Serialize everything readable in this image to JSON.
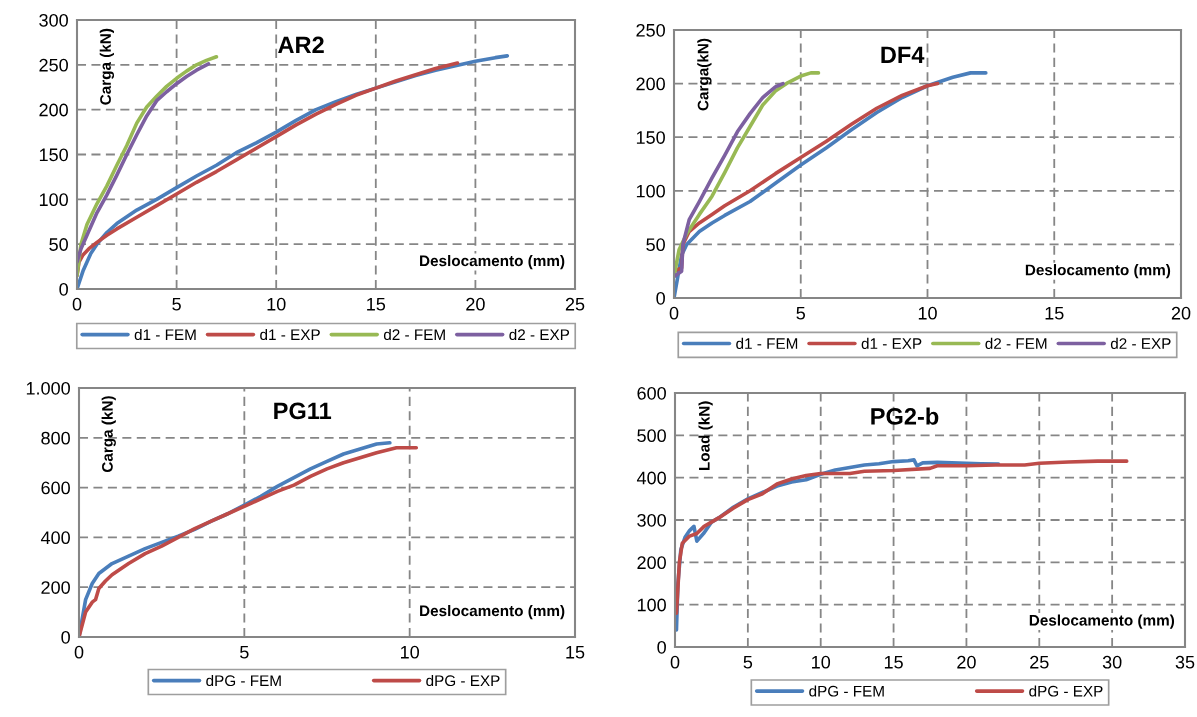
{
  "chart_data": [
    {
      "type": "line",
      "title": "AR2",
      "xlabel": "Deslocamento (mm)",
      "ylabel": "Carga (kN)",
      "xlim": [
        0,
        25
      ],
      "ylim": [
        0,
        300
      ],
      "xticks": [
        0,
        5,
        10,
        15,
        20,
        25
      ],
      "yticks": [
        0,
        50,
        100,
        150,
        200,
        250,
        300
      ],
      "grid": true,
      "legend": "bottom",
      "series": [
        {
          "name": "d1 - FEM",
          "color": "#4a7ebb",
          "x": [
            0,
            0.3,
            0.7,
            1,
            1.5,
            2,
            3,
            4,
            5,
            6,
            7,
            8,
            9,
            10,
            11,
            12,
            13,
            14,
            15,
            16,
            17,
            18,
            19,
            20,
            21,
            21.6
          ],
          "values": [
            0,
            20,
            40,
            50,
            63,
            73,
            88,
            100,
            113,
            126,
            138,
            152,
            163,
            175,
            188,
            200,
            209,
            217,
            224,
            231,
            238,
            244,
            249,
            254,
            258,
            260
          ]
        },
        {
          "name": "d1 - EXP",
          "color": "#be4b48",
          "x": [
            0,
            0.1,
            0.3,
            0.6,
            1,
            1.5,
            2,
            3,
            4,
            5,
            6,
            7,
            8,
            9,
            10,
            11,
            12,
            13,
            14,
            15,
            16,
            17,
            18,
            19.1
          ],
          "values": [
            15,
            30,
            38,
            45,
            52,
            60,
            67,
            80,
            93,
            106,
            119,
            131,
            144,
            157,
            170,
            183,
            195,
            206,
            216,
            224,
            232,
            239,
            246,
            252
          ]
        },
        {
          "name": "d2 - FEM",
          "color": "#98b954",
          "x": [
            0,
            0.2,
            0.5,
            1,
            1.5,
            2,
            2.5,
            3,
            3.5,
            4,
            4.5,
            5,
            5.5,
            6,
            6.5,
            7
          ],
          "values": [
            15,
            50,
            72,
            95,
            115,
            138,
            160,
            185,
            203,
            215,
            226,
            235,
            243,
            250,
            255,
            259
          ]
        },
        {
          "name": "d2 - EXP",
          "color": "#7d60a0",
          "x": [
            0,
            0.2,
            0.5,
            1,
            1.5,
            2,
            2.5,
            3,
            3.5,
            4,
            4.5,
            5,
            5.5,
            6,
            6.6
          ],
          "values": [
            30,
            45,
            60,
            85,
            105,
            127,
            150,
            172,
            193,
            210,
            220,
            229,
            237,
            244,
            251
          ]
        }
      ]
    },
    {
      "type": "line",
      "title": "DF4",
      "xlabel": "Deslocamento (mm)",
      "ylabel": "Carga(kN)",
      "xlim": [
        0,
        20
      ],
      "ylim": [
        0,
        250
      ],
      "xticks": [
        0,
        5,
        10,
        15,
        20
      ],
      "yticks": [
        0,
        50,
        100,
        150,
        200,
        250
      ],
      "grid": true,
      "legend": "bottom",
      "series": [
        {
          "name": "d1 - FEM",
          "color": "#4a7ebb",
          "x": [
            0,
            0.15,
            0.3,
            0.5,
            1,
            1.5,
            2,
            3,
            4,
            5,
            6,
            7,
            8,
            9,
            10,
            11,
            11.7,
            12.3
          ],
          "values": [
            0,
            20,
            40,
            50,
            62,
            70,
            77,
            90,
            107,
            124,
            140,
            157,
            173,
            187,
            198,
            206,
            210,
            210
          ]
        },
        {
          "name": "d1 - EXP",
          "color": "#be4b48",
          "x": [
            0,
            0.3,
            0.35,
            0.6,
            1,
            1.5,
            2,
            3,
            4,
            5,
            6,
            7,
            8,
            9,
            10,
            10.4
          ],
          "values": [
            25,
            28,
            50,
            62,
            70,
            78,
            86,
            100,
            116,
            131,
            146,
            162,
            177,
            189,
            198,
            200
          ]
        },
        {
          "name": "d2 - FEM",
          "color": "#98b954",
          "x": [
            0,
            0.2,
            0.5,
            1,
            1.5,
            2,
            2.5,
            3,
            3.5,
            4,
            4.5,
            5,
            5.4,
            5.7
          ],
          "values": [
            20,
            45,
            60,
            78,
            95,
            117,
            140,
            160,
            180,
            193,
            201,
            207,
            210,
            210
          ]
        },
        {
          "name": "d2 - EXP",
          "color": "#7d60a0",
          "x": [
            0,
            0.3,
            0.35,
            0.6,
            1,
            1.5,
            2,
            2.5,
            3,
            3.5,
            4,
            4.3
          ],
          "values": [
            20,
            25,
            50,
            73,
            90,
            112,
            133,
            155,
            172,
            187,
            197,
            200
          ]
        }
      ]
    },
    {
      "type": "line",
      "title": "PG11",
      "xlabel": "Deslocamento (mm)",
      "ylabel": "Carga (kN)",
      "xlim": [
        0,
        15
      ],
      "ylim": [
        0,
        1000
      ],
      "xticks": [
        0,
        5,
        10,
        15
      ],
      "yticks": [
        0,
        200,
        400,
        600,
        800,
        {
          "value": 1000,
          "label": "1.000"
        }
      ],
      "grid": true,
      "legend": "bottom",
      "series": [
        {
          "name": "dPG - FEM",
          "color": "#4a7ebb",
          "x": [
            0,
            0.2,
            0.4,
            0.6,
            0.8,
            1,
            1.5,
            2,
            2.5,
            3,
            3.5,
            4,
            4.5,
            5,
            5.5,
            6,
            6.5,
            7,
            7.5,
            8,
            8.5,
            9,
            9.4
          ],
          "values": [
            0,
            150,
            215,
            255,
            275,
            295,
            325,
            355,
            380,
            405,
            432,
            465,
            495,
            530,
            565,
            605,
            640,
            675,
            705,
            735,
            755,
            775,
            780
          ]
        },
        {
          "name": "dPG - EXP",
          "color": "#be4b48",
          "x": [
            0,
            0.2,
            0.4,
            0.5,
            0.6,
            0.8,
            1,
            1.5,
            2,
            2.5,
            3,
            3.5,
            4,
            4.5,
            5,
            5.5,
            6,
            6.5,
            7,
            7.5,
            8,
            8.5,
            9,
            9.6,
            10.2
          ],
          "values": [
            0,
            100,
            140,
            150,
            195,
            225,
            250,
            295,
            335,
            365,
            400,
            435,
            465,
            495,
            525,
            555,
            585,
            610,
            645,
            675,
            700,
            720,
            740,
            760,
            760
          ]
        }
      ]
    },
    {
      "type": "line",
      "title": "PG2-b",
      "xlabel": "Deslocamento (mm)",
      "ylabel": "Load (kN)",
      "xlim": [
        0,
        35
      ],
      "ylim": [
        0,
        600
      ],
      "xticks": [
        0,
        5,
        10,
        15,
        20,
        25,
        30,
        35
      ],
      "yticks": [
        0,
        100,
        200,
        300,
        400,
        500,
        600
      ],
      "grid": true,
      "legend": "bottom",
      "series": [
        {
          "name": "dPG - FEM",
          "color": "#4a7ebb",
          "x": [
            0.1,
            0.2,
            0.4,
            0.7,
            1,
            1.3,
            1.5,
            2,
            2.5,
            3,
            4,
            5,
            6,
            7,
            8,
            9,
            10,
            11,
            12,
            13,
            14,
            15,
            16,
            16.4,
            16.6,
            17,
            18,
            19,
            20,
            21,
            22.2
          ],
          "values": [
            40,
            150,
            230,
            260,
            275,
            285,
            250,
            270,
            295,
            305,
            330,
            350,
            365,
            380,
            390,
            395,
            408,
            418,
            424,
            430,
            433,
            438,
            440,
            442,
            428,
            435,
            436,
            435,
            434,
            433,
            432
          ]
        },
        {
          "name": "dPG - EXP",
          "color": "#be4b48",
          "x": [
            0.1,
            0.3,
            0.5,
            1,
            1.5,
            2,
            3,
            4,
            5,
            6,
            7,
            8,
            9,
            10,
            12,
            13,
            15,
            17.5,
            18,
            20,
            22,
            24,
            25,
            27,
            29,
            31
          ],
          "values": [
            80,
            200,
            245,
            262,
            268,
            285,
            305,
            328,
            348,
            362,
            385,
            397,
            405,
            410,
            410,
            415,
            417,
            422,
            428,
            428,
            430,
            430,
            434,
            437,
            439,
            439
          ]
        }
      ]
    }
  ]
}
